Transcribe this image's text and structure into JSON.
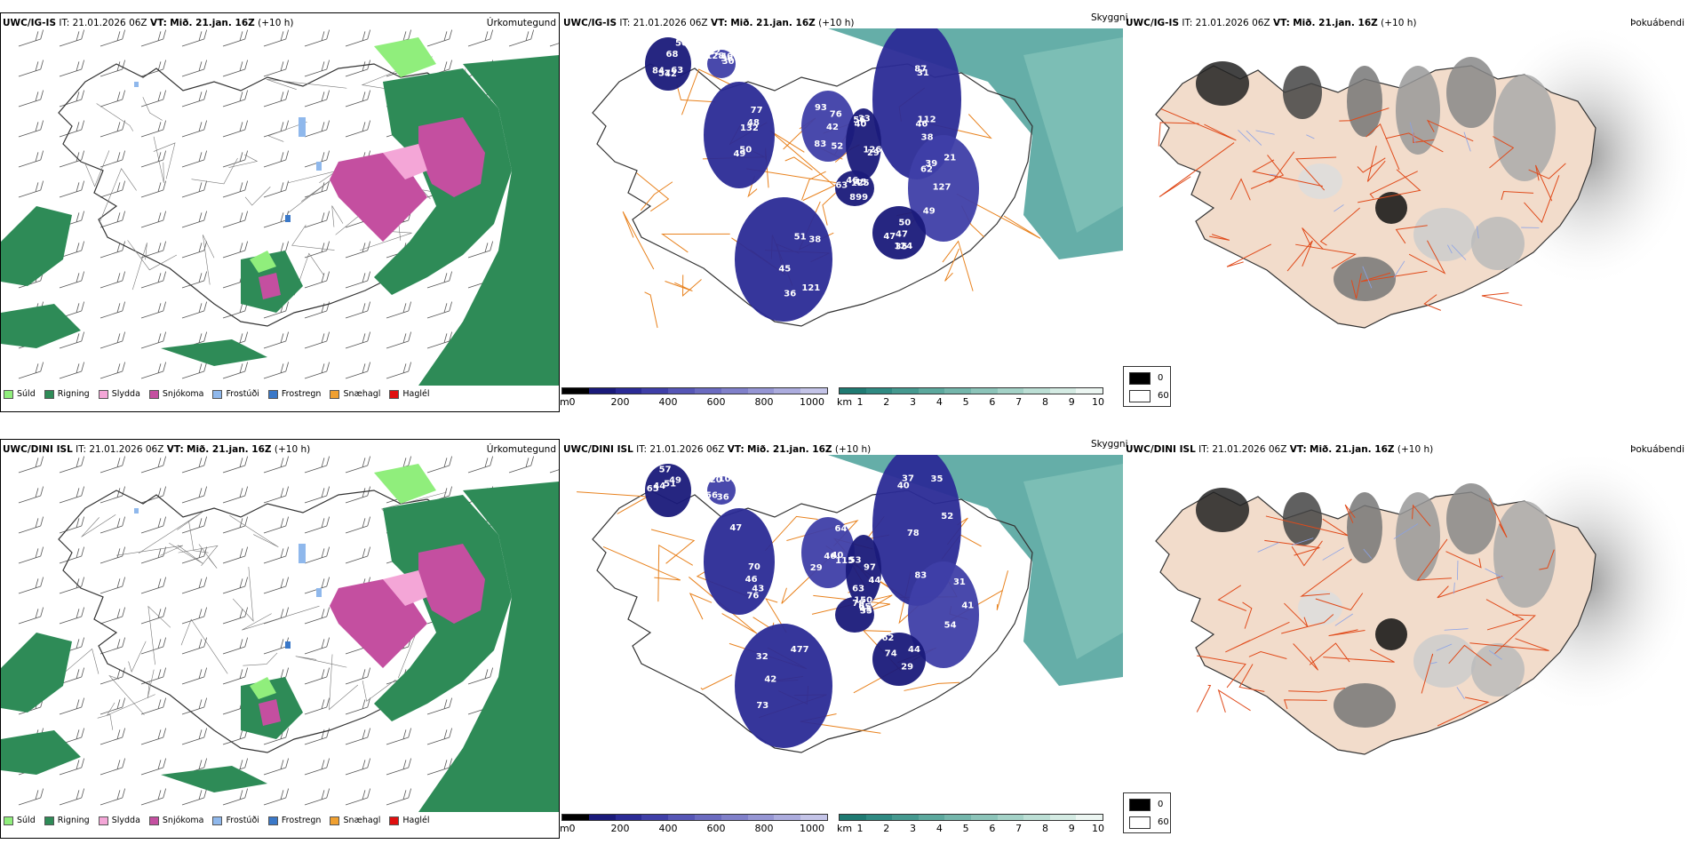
{
  "rows": [
    {
      "model": "UWC/IG-IS",
      "it_label": "IT:",
      "it": "21.01.2026 06Z",
      "vt_label": "VT:",
      "vt": "Mið. 21.jan. 16Z",
      "lead": "(+10 h)",
      "panel1_label": "Úrkomutegund",
      "panel2_side_label": "Skyggni",
      "panel3_label": "Þokuábendi",
      "visibility_labels": [
        "57",
        "50",
        "76",
        "45",
        "46",
        "49",
        "47",
        "45",
        "82",
        "56",
        "63",
        "77",
        "83",
        "125",
        "112",
        "127",
        "124",
        "121",
        "128",
        "126",
        "50",
        "48",
        "52",
        "63",
        "31",
        "21",
        "47",
        "38",
        "30",
        "29",
        "84",
        "132",
        "93",
        "899",
        "87",
        "62",
        "50",
        "51",
        "36",
        "33",
        "42",
        "49",
        "42",
        "46",
        "38",
        "39",
        "35",
        "36",
        "40",
        "40",
        "68"
      ]
    },
    {
      "model": "UWC/DINI ISL",
      "it_label": "IT:",
      "it": "21.01.2026 06Z",
      "vt_label": "VT:",
      "vt": "Mið. 21.jan. 16Z",
      "lead": "(+10 h)",
      "panel1_label": "Úrkomutegund",
      "panel2_side_label": "Skyggni",
      "panel3_label": "Þokuábendi",
      "visibility_labels": [
        "57",
        "70",
        "46",
        "65",
        "78",
        "54",
        "62",
        "477",
        "101",
        "97",
        "65",
        "47",
        "64",
        "78",
        "35",
        "31",
        "44",
        "42",
        "56",
        "53",
        "44",
        "46",
        "40",
        "35",
        "37",
        "41",
        "29",
        "32",
        "20",
        "44",
        "51",
        "76",
        "115",
        "150",
        "52",
        "83",
        "74",
        "73",
        "36",
        "63",
        "49",
        "43",
        "29",
        "45",
        "40"
      ]
    }
  ],
  "precip_legend": [
    {
      "label": "Súld",
      "color": "#90ee7c"
    },
    {
      "label": "Rigning",
      "color": "#2e8b57"
    },
    {
      "label": "Slydda",
      "color": "#f4a6d7"
    },
    {
      "label": "Snjókoma",
      "color": "#c44fa0"
    },
    {
      "label": "Frostúði",
      "color": "#8fb8ec"
    },
    {
      "label": "Frostregn",
      "color": "#3a78c8"
    },
    {
      "label": "Snæhagl",
      "color": "#f0a030"
    },
    {
      "label": "Haglél",
      "color": "#e01010"
    }
  ],
  "height_scale": {
    "unit": "m",
    "ticks": [
      "0",
      "200",
      "400",
      "600",
      "800",
      "1000"
    ],
    "colors": [
      "#000000",
      "#1a1a7a",
      "#2b2b96",
      "#3f3fa8",
      "#5656b6",
      "#6b6bc0",
      "#8080ca",
      "#9696d4",
      "#acacde",
      "#c4c4e8"
    ]
  },
  "visibility_scale": {
    "unit": "km",
    "ticks": [
      "1",
      "2",
      "3",
      "4",
      "5",
      "6",
      "7",
      "8",
      "9",
      "10"
    ],
    "colors": [
      "#1f7a72",
      "#2f8a82",
      "#45998f",
      "#5ca89d",
      "#74b6ab",
      "#8cc4b9",
      "#a4d2c7",
      "#bcdfd5",
      "#d4ebe3",
      "#ecf6f2"
    ]
  },
  "fog_legend": [
    {
      "label": "0",
      "color": "#000000"
    },
    {
      "label": "60",
      "color": "#ffffff"
    }
  ]
}
